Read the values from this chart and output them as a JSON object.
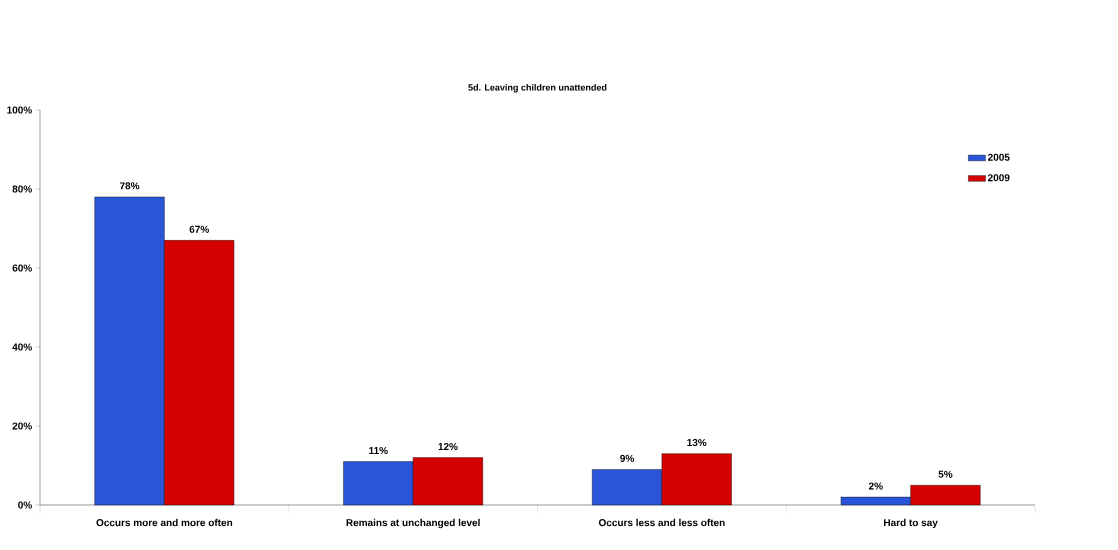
{
  "chart_data": {
    "type": "bar",
    "title": "5d. Leaving children unattended",
    "categories": [
      "Occurs more and more often",
      "Remains at unchanged level",
      "Occurs less and less often",
      "Hard to say"
    ],
    "series": [
      {
        "name": "2005",
        "color": "#2b55d8",
        "values": [
          78,
          11,
          9,
          2
        ],
        "value_labels": [
          "78%",
          "11%",
          "9%",
          "2%"
        ]
      },
      {
        "name": "2009",
        "color": "#d40000",
        "values": [
          67,
          12,
          13,
          5
        ],
        "value_labels": [
          "67%",
          "12%",
          "13%",
          "5%"
        ]
      }
    ],
    "ylim": [
      0,
      100
    ],
    "yticks": [
      {
        "value": 0,
        "label": "0%"
      },
      {
        "value": 20,
        "label": "20%"
      },
      {
        "value": 40,
        "label": "40%"
      },
      {
        "value": 60,
        "label": "60%"
      },
      {
        "value": 80,
        "label": "80%"
      },
      {
        "value": 100,
        "label": "100%"
      }
    ],
    "grid": false,
    "legend": "top right"
  }
}
